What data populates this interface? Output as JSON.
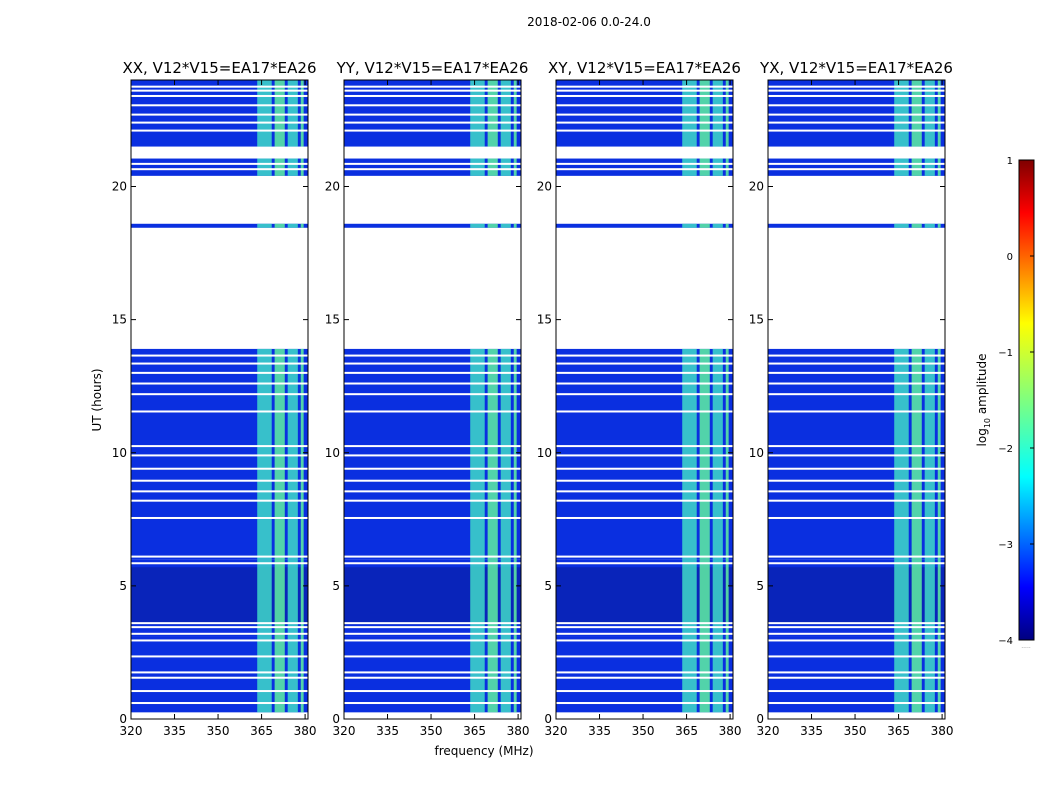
{
  "figure": {
    "suptitle": "2018-02-06 0.0-24.0",
    "xlabel": "frequency (MHz)",
    "ylabel": "UT (hours)"
  },
  "chart_data": {
    "type": "heatmap",
    "xlim": [
      320,
      381
    ],
    "ylim": [
      0,
      24
    ],
    "xticks": [
      320,
      335,
      350,
      365,
      380
    ],
    "yticks": [
      0,
      5,
      10,
      15,
      20
    ],
    "x_tick_labels": [
      "320",
      "335",
      "350",
      "365",
      "380"
    ],
    "y_tick_labels": [
      "0",
      "5",
      "10",
      "15",
      "20"
    ],
    "panels": [
      {
        "title": "XX, V12*V15=EA17*EA26",
        "pol": "XX"
      },
      {
        "title": "YY, V12*V15=EA17*EA26",
        "pol": "YY"
      },
      {
        "title": "XY, V12*V15=EA17*EA26",
        "pol": "XY"
      },
      {
        "title": "YX, V12*V15=EA17*EA26",
        "pol": "YX"
      }
    ],
    "data_segments_hours": [
      [
        0.25,
        3.1
      ],
      [
        3.1,
        6.0
      ],
      [
        6.0,
        13.9
      ],
      [
        18.45,
        18.6
      ],
      [
        20.4,
        21.05
      ],
      [
        21.5,
        24.0
      ]
    ],
    "flagged_rows_hours": [
      0.6,
      1.05,
      1.55,
      1.75,
      2.35,
      2.95,
      3.2,
      3.45,
      3.6,
      5.85,
      6.1,
      7.55,
      8.2,
      8.55,
      8.95,
      9.4,
      9.9,
      10.25,
      11.55,
      12.2,
      12.6,
      13.0,
      13.35,
      13.65,
      20.65,
      20.85,
      22.1,
      22.4,
      22.7,
      23.05,
      23.4,
      23.6,
      23.75
    ],
    "low_quality_block_hours": [
      3.55,
      5.7
    ],
    "bright_channel_bands_mhz": [
      [
        363.5,
        368.5
      ],
      [
        369.5,
        373.0
      ],
      [
        374.0,
        377.5
      ],
      [
        378.5,
        379.5
      ]
    ],
    "colorbar": {
      "label_prefix": "log",
      "label_sub": "10",
      "label_suffix": " amplitude",
      "min": -4,
      "max": 1,
      "ticks": [
        "1",
        "0",
        "−1",
        "−2",
        "−3",
        "−4"
      ],
      "tick_values": [
        1,
        0,
        -1,
        -2,
        -3,
        -4
      ],
      "colormap": "jet",
      "extra_label": "....."
    },
    "colors": {
      "background": "#ffffff",
      "noise_floor": "#0a2fe0",
      "colormap_stops": [
        "#00007f",
        "#0000ff",
        "#007fff",
        "#00ffff",
        "#7fff7f",
        "#ffff00",
        "#ff7f00",
        "#ff0000",
        "#7f0000"
      ]
    }
  }
}
